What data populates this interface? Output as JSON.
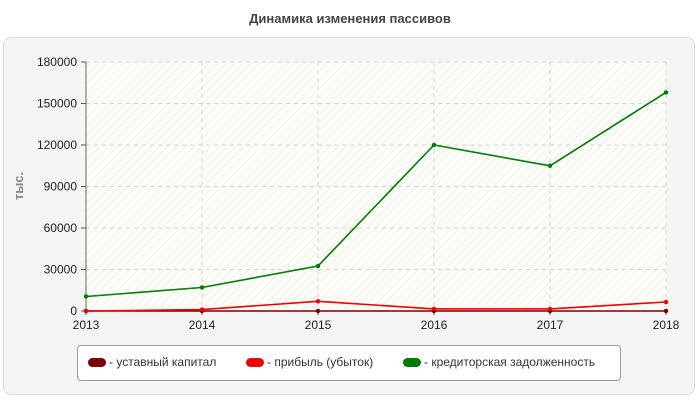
{
  "chart_data": {
    "type": "line",
    "title": "Динамика изменения пассивов",
    "xlabel": "",
    "ylabel": "тыс.",
    "categories": [
      "2013",
      "2014",
      "2015",
      "2016",
      "2017",
      "2018"
    ],
    "ylim": [
      0,
      180000
    ],
    "yticks": [
      "0",
      "30000",
      "60000",
      "90000",
      "120000",
      "150000",
      "180000"
    ],
    "grid": true,
    "legend_position": "bottom",
    "series": [
      {
        "name": "- уставный капитал",
        "color": "#7a0000",
        "values": [
          10,
          10,
          10,
          10,
          10,
          10
        ]
      },
      {
        "name": "- прибыль (убыток)",
        "color": "#ee0000",
        "values": [
          0,
          1000,
          7000,
          1500,
          1500,
          6500
        ]
      },
      {
        "name": "- кредиторская задолженность",
        "color": "#007a00",
        "values": [
          10500,
          17000,
          32500,
          120000,
          105000,
          158000
        ]
      }
    ]
  }
}
